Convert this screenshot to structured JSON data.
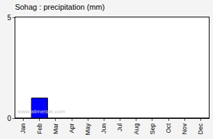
{
  "chart_data": {
    "type": "bar",
    "title": "Sohag : precipitation (mm)",
    "categories": [
      "Jan",
      "Feb",
      "Mar",
      "Apr",
      "May",
      "Jun",
      "Jul",
      "Aug",
      "Sep",
      "Oct",
      "Nov",
      "Dec"
    ],
    "values": [
      0,
      1,
      0,
      0,
      0,
      0,
      0,
      0,
      0,
      0,
      0,
      0
    ],
    "color": "#0000ff",
    "ylim": [
      0,
      5
    ],
    "yticks": [
      0,
      5
    ],
    "grid": false,
    "annotation": "www.allmetsat.com"
  }
}
